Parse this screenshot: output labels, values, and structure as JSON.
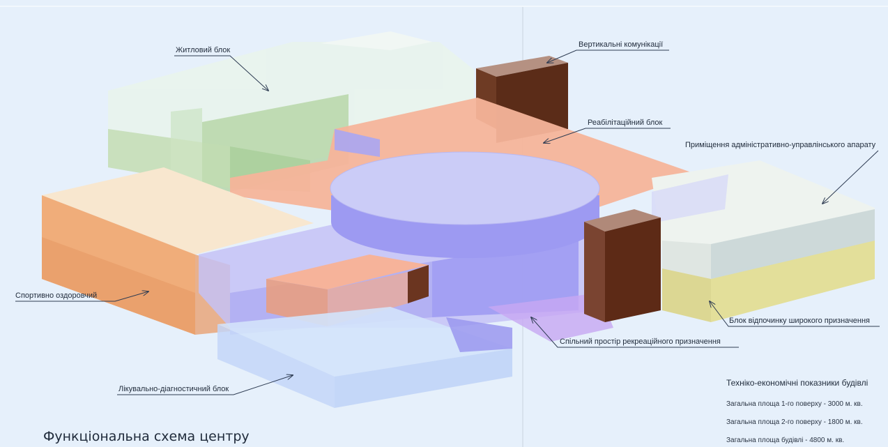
{
  "title": "Функціональна схема центру",
  "labels": {
    "residential": "Житловий блок",
    "vertical": "Вертикальні комунікації",
    "rehab": "Реабілітаційний блок",
    "admin": "Приміщення адміністративно-управлінського апарату",
    "sport": "Спортивно оздоровчий",
    "leisure": "Блок відпочинку широкого призначення",
    "recreation": "Спільний простір рекреаційного призначення",
    "medical": "Лікувально-діагностичний блок"
  },
  "stats": {
    "heading": "Техніко-економічні показники будівлі",
    "rows": [
      "Загальна площа 1-го поверху - 3000 м. кв.",
      "Загальна площа 2-го поверху - 1800 м. кв.",
      "Загальна площа будівлі - 4800 м. кв."
    ]
  },
  "colors": {
    "background": "#e6f0fb",
    "residential": "#e8f3ec",
    "residential_green": "#b8d6a5",
    "vertical": "#6b3a26",
    "rehab": "#f6b79a",
    "admin": "#eef2ef",
    "leisure": "#e4df9c",
    "sport": "#f0b482",
    "recreation": "#a9a6f4",
    "medical": "#c9dcf9"
  }
}
